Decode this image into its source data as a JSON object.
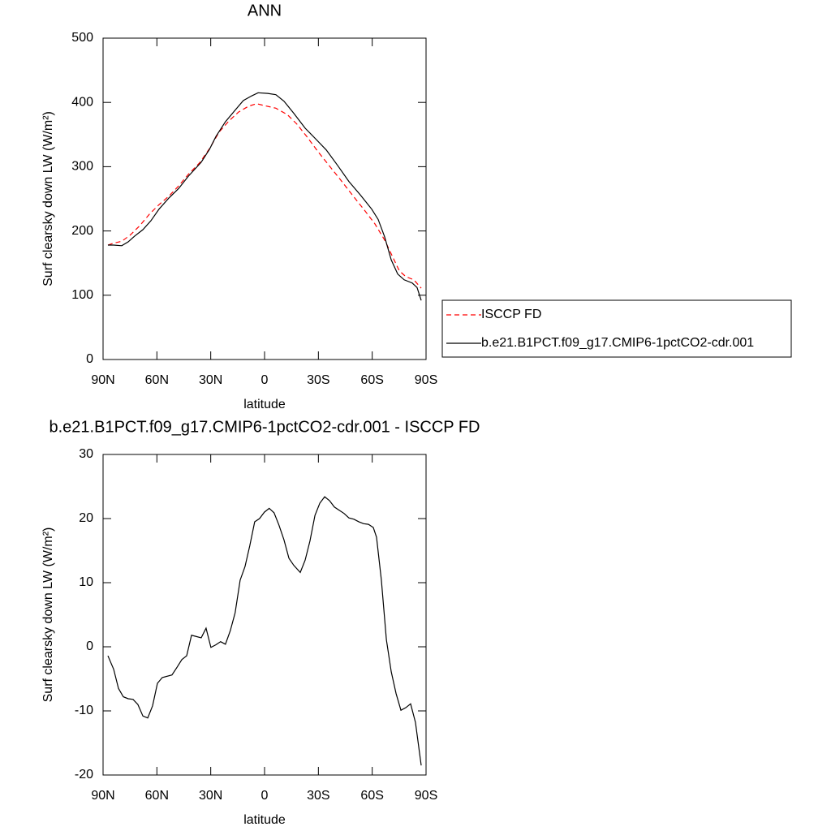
{
  "chart_data": [
    {
      "type": "line",
      "title": "ANN",
      "xlabel": "latitude",
      "ylabel": "Surf clearsky down LW (W/m²)",
      "xlim": [
        90,
        -90
      ],
      "ylim": [
        0,
        500
      ],
      "xticks": [
        {
          "value": 90,
          "label": "90N"
        },
        {
          "value": 60,
          "label": "60N"
        },
        {
          "value": 30,
          "label": "30N"
        },
        0,
        {
          "value": -30,
          "label": "30S"
        },
        {
          "value": -60,
          "label": "60S"
        },
        {
          "value": -90,
          "label": "90S"
        }
      ],
      "yticks": [
        0,
        100,
        200,
        300,
        400,
        500
      ],
      "legend": "outside right",
      "series": [
        {
          "name": "ISCCP FD",
          "color": "#ff0000",
          "dashed": true,
          "x": [
            87.3,
            84.1,
            79.6,
            75.1,
            69.6,
            64.2,
            58.8,
            53.4,
            47.9,
            42.5,
            36.2,
            30.7,
            25.3,
            19.9,
            14.5,
            9.0,
            4.5,
            0.0,
            -6.3,
            -12.7,
            -18.1,
            -23.5,
            -29.9,
            -36.2,
            -42.5,
            -48.9,
            -55.2,
            -61.5,
            -66.9,
            -71.5,
            -75.1,
            -78.7,
            -83.2,
            -87.3
          ],
          "values": [
            178,
            181,
            184,
            193,
            208,
            226,
            241,
            254,
            270,
            288,
            306,
            328,
            354,
            371,
            385,
            394,
            398,
            395,
            391,
            381,
            366,
            347,
            323,
            301,
            279,
            256,
            234,
            211,
            186,
            159,
            138,
            129,
            124,
            111
          ]
        },
        {
          "name": "b.e21.B1PCT.f09_g17.CMIP6-1pctCO2-cdr.001",
          "color": "#000000",
          "dashed": false,
          "x": [
            87.3,
            84.1,
            79.6,
            76.0,
            72.4,
            67.8,
            63.3,
            58.8,
            53.4,
            47.9,
            42.5,
            35.3,
            30.7,
            27.1,
            21.8,
            16.4,
            11.8,
            7.3,
            3.6,
            -1.8,
            -6.3,
            -10.8,
            -16.3,
            -22.6,
            -28.9,
            -34.4,
            -40.7,
            -47.0,
            -53.4,
            -59.7,
            -63.3,
            -66.9,
            -70.6,
            -74.2,
            -77.8,
            -82.3,
            -85.0,
            -87.3
          ],
          "values": [
            178,
            178,
            177,
            183,
            192,
            202,
            216,
            234,
            251,
            266,
            285,
            307,
            327,
            347,
            370,
            388,
            403,
            410,
            415,
            414,
            412,
            402,
            383,
            360,
            342,
            326,
            302,
            277,
            256,
            234,
            218,
            191,
            155,
            133,
            124,
            119,
            112,
            92
          ]
        }
      ]
    },
    {
      "type": "line",
      "title": "b.e21.B1PCT.f09_g17.CMIP6-1pctCO2-cdr.001 - ISCCP FD",
      "xlabel": "latitude",
      "ylabel": "Surf clearsky down LW (W/m²)",
      "xlim": [
        90,
        -90
      ],
      "ylim": [
        -20,
        30
      ],
      "xticks": [
        {
          "value": 90,
          "label": "90N"
        },
        {
          "value": 60,
          "label": "60N"
        },
        {
          "value": 30,
          "label": "30N"
        },
        0,
        {
          "value": -30,
          "label": "30S"
        },
        {
          "value": -60,
          "label": "60S"
        },
        {
          "value": -90,
          "label": "90S"
        }
      ],
      "yticks": [
        -20,
        -10,
        0,
        10,
        20,
        30
      ],
      "series": [
        {
          "color": "#000000",
          "dashed": false,
          "x": [
            87.3,
            84.1,
            81.4,
            78.7,
            76.0,
            73.3,
            70.6,
            67.8,
            65.1,
            62.4,
            59.7,
            57.0,
            51.6,
            48.8,
            46.1,
            43.4,
            40.7,
            38.0,
            35.3,
            32.6,
            29.9,
            27.2,
            24.5,
            21.8,
            19.1,
            16.4,
            13.6,
            10.9,
            8.2,
            5.5,
            2.8,
            0.1,
            -2.6,
            -5.3,
            -8.0,
            -10.8,
            -13.6,
            -16.3,
            -19.9,
            -22.6,
            -25.3,
            -28.1,
            -30.8,
            -33.5,
            -36.2,
            -38.9,
            -41.6,
            -44.3,
            -47.0,
            -49.8,
            -52.5,
            -55.2,
            -57.9,
            -60.6,
            -62.4,
            -65.1,
            -67.9,
            -70.6,
            -73.3,
            -76.0,
            -78.7,
            -81.4,
            -84.1,
            -87.3
          ],
          "values": [
            -1.4,
            -3.5,
            -6.5,
            -7.8,
            -8.1,
            -8.2,
            -9,
            -10.8,
            -11.1,
            -9.2,
            -5.7,
            -4.8,
            -4.4,
            -3.2,
            -2.0,
            -1.4,
            1.8,
            1.6,
            1.4,
            2.9,
            -0.1,
            0.3,
            0.8,
            0.4,
            2.5,
            5.3,
            10.4,
            12.5,
            15.8,
            19.5,
            20,
            21,
            21.6,
            20.9,
            19,
            16.7,
            13.8,
            12.7,
            11.6,
            13.5,
            16.5,
            20.5,
            22.4,
            23.4,
            22.8,
            21.8,
            21.3,
            20.8,
            20.1,
            19.9,
            19.5,
            19.2,
            19.1,
            18.6,
            17.1,
            10.4,
            1.1,
            -3.9,
            -7.3,
            -9.9,
            -9.5,
            -8.9,
            -11.8,
            -18.5
          ]
        }
      ]
    }
  ]
}
